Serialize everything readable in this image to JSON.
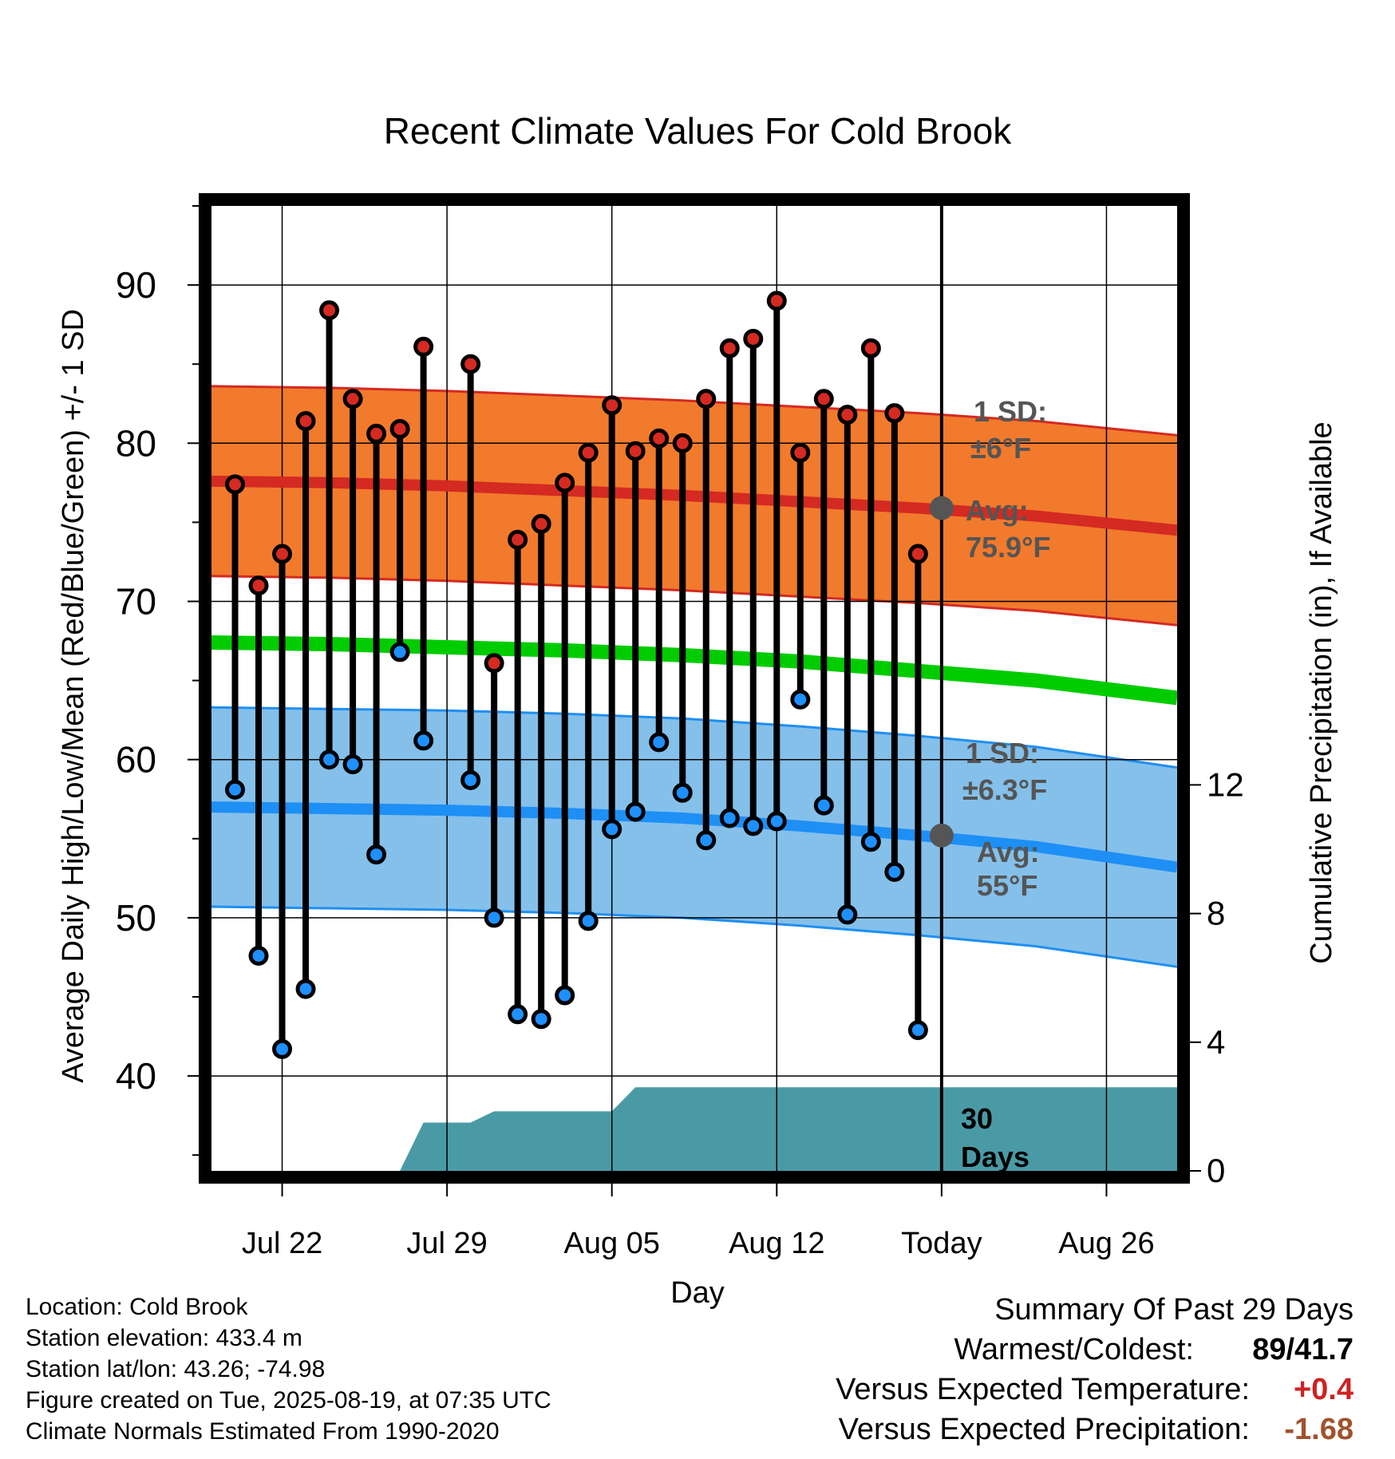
{
  "chart_data": {
    "type": "line",
    "title": "Recent Climate Values For Cold Brook",
    "xlabel": "Day",
    "ylabel": "Average Daily High/Low/Mean (Red/Blue/Green) +/- 1 SD",
    "y2label": "Cumulative Precipitation (in), If Available",
    "x_range": [
      "2025-07-19",
      "2025-08-29"
    ],
    "ylim": [
      34,
      95
    ],
    "y_ticks": [
      40,
      50,
      60,
      70,
      80,
      90
    ],
    "y2lim": [
      0,
      30
    ],
    "y2_ticks": [
      0,
      4,
      8,
      12
    ],
    "x_ticks": [
      {
        "date": "2025-07-22",
        "label": "Jul 22"
      },
      {
        "date": "2025-07-29",
        "label": "Jul 29"
      },
      {
        "date": "2025-08-05",
        "label": "Aug 05"
      },
      {
        "date": "2025-08-12",
        "label": "Aug 12"
      },
      {
        "date": "2025-08-19",
        "label": "Today"
      },
      {
        "date": "2025-08-26",
        "label": "Aug 26"
      }
    ],
    "grid": true,
    "today": "2025-08-19",
    "normals": {
      "dates": [
        "2025-07-19",
        "2025-07-24",
        "2025-07-29",
        "2025-08-03",
        "2025-08-08",
        "2025-08-13",
        "2025-08-18",
        "2025-08-23",
        "2025-08-29"
      ],
      "high_avg": [
        77.6,
        77.5,
        77.3,
        77.0,
        76.7,
        76.3,
        75.9,
        75.4,
        74.5
      ],
      "high_sd": 6,
      "low_avg": [
        57.0,
        56.9,
        56.8,
        56.6,
        56.3,
        55.8,
        55.2,
        54.5,
        53.2
      ],
      "low_sd": 6.3,
      "mean_avg": [
        67.4,
        67.3,
        67.1,
        66.9,
        66.6,
        66.2,
        65.6,
        65.0,
        63.9
      ]
    },
    "daily": {
      "dates": [
        "2025-07-20",
        "2025-07-21",
        "2025-07-22",
        "2025-07-23",
        "2025-07-24",
        "2025-07-25",
        "2025-07-26",
        "2025-07-27",
        "2025-07-28",
        "2025-07-30",
        "2025-07-31",
        "2025-08-01",
        "2025-08-02",
        "2025-08-03",
        "2025-08-04",
        "2025-08-05",
        "2025-08-06",
        "2025-08-07",
        "2025-08-08",
        "2025-08-09",
        "2025-08-10",
        "2025-08-11",
        "2025-08-12",
        "2025-08-13",
        "2025-08-14",
        "2025-08-15",
        "2025-08-16",
        "2025-08-17",
        "2025-08-18"
      ],
      "high": [
        77.4,
        71,
        73,
        81.4,
        88.4,
        82.8,
        80.6,
        80.9,
        86.1,
        85,
        66.1,
        73.9,
        74.9,
        77.5,
        79.4,
        82.4,
        79.5,
        80.3,
        80,
        82.8,
        86,
        86.6,
        89,
        79.4,
        82.8,
        81.8,
        86,
        81.9,
        73
      ],
      "low": [
        58.1,
        47.6,
        41.7,
        45.5,
        60,
        59.7,
        54,
        66.8,
        61.2,
        58.7,
        50,
        43.9,
        43.6,
        45.1,
        49.8,
        55.6,
        56.7,
        61.1,
        57.9,
        54.9,
        56.3,
        55.8,
        56.1,
        63.8,
        57.1,
        50.2,
        54.8,
        52.9,
        42.9
      ]
    },
    "precip": {
      "dates": [
        "2025-07-27",
        "2025-07-28",
        "2025-07-30",
        "2025-07-31",
        "2025-08-05",
        "2025-08-06",
        "2025-08-13",
        "2025-08-29"
      ],
      "values": [
        0,
        1.5,
        1.5,
        1.85,
        1.85,
        2.6,
        2.6,
        2.6
      ]
    },
    "annotations": {
      "high_sd_label": [
        "1 SD:",
        "±6°F"
      ],
      "high_avg_label": [
        "Avg:",
        "75.9°F"
      ],
      "low_sd_label": [
        "1 SD:",
        "±6.3°F"
      ],
      "low_avg_label": [
        "Avg:",
        "55°F"
      ],
      "window_label": [
        "30",
        "Days"
      ]
    },
    "colors": {
      "high_band": "#f27a2c",
      "high_band_edge": "#d42a22",
      "high_line": "#d42a22",
      "low_band": "#84c0ea",
      "low_band_edge": "#1f8ff0",
      "low_line": "#1e8ff5",
      "mean_line": "#00cc00",
      "precip": "#4a9aa5",
      "high_marker": "#d42a22",
      "low_marker": "#1e90ff",
      "today_marker": "#555555",
      "annotation": "#555555"
    }
  },
  "info": {
    "location": "Location: Cold Brook",
    "elevation": "Station elevation: 433.4 m",
    "latlon": "Station lat/lon: 43.26; -74.98",
    "created": "Figure created on Tue, 2025-08-19, at 07:35 UTC",
    "normals": "Climate Normals Estimated From 1990-2020"
  },
  "summary": {
    "title": "Summary Of Past 29 Days",
    "warm_cold_label": "Warmest/Coldest:",
    "warm_cold_value": "89/41.7",
    "temp_label": "Versus Expected Temperature:",
    "temp_value": "+0.4",
    "temp_color": "#cc2222",
    "precip_label": "Versus Expected Precipitation:",
    "precip_value": "-1.68",
    "precip_color": "#a0522d"
  }
}
